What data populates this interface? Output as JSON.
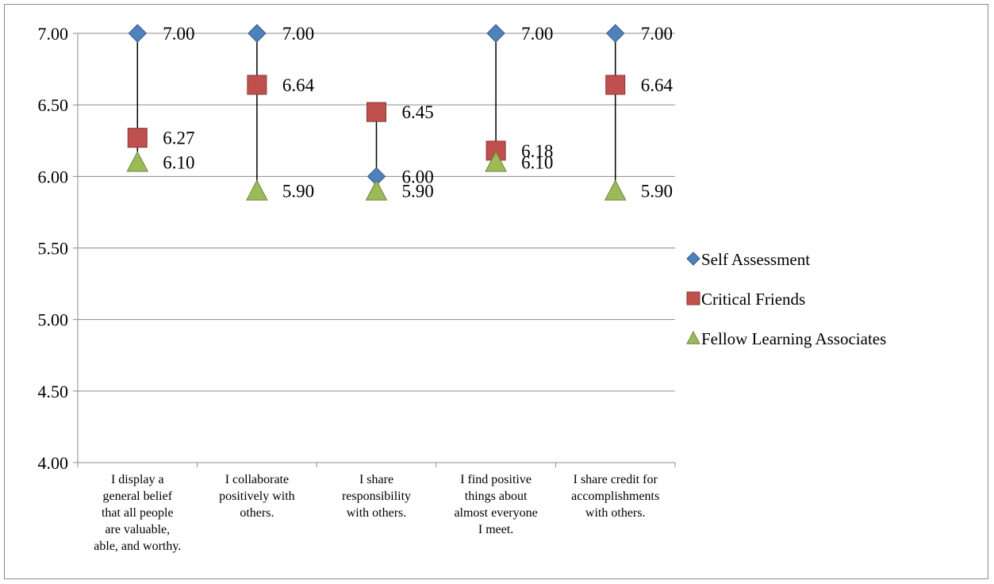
{
  "chart_data": {
    "type": "scatter",
    "categories": [
      [
        "I display a",
        "general belief",
        "that all people",
        "are valuable,",
        "able, and worthy."
      ],
      [
        "I collaborate",
        "positively with",
        "others."
      ],
      [
        "I share",
        "responsibility",
        "with others."
      ],
      [
        "I find positive",
        "things about",
        "almost everyone",
        "I meet."
      ],
      [
        "I share credit for",
        "accomplishments",
        "with others."
      ]
    ],
    "series": [
      {
        "name": "Self Assessment",
        "marker": "diamond",
        "color": "#4f81bd",
        "values": [
          7.0,
          7.0,
          6.0,
          7.0,
          7.0
        ]
      },
      {
        "name": "Critical Friends",
        "marker": "square",
        "color": "#c0504d",
        "values": [
          6.27,
          6.64,
          6.45,
          6.18,
          6.64
        ]
      },
      {
        "name": "Fellow Learning Associates",
        "marker": "triangle",
        "color": "#9bbb59",
        "values": [
          6.1,
          5.9,
          5.9,
          6.1,
          5.9
        ]
      }
    ],
    "data_labels": [
      [
        "7.00",
        "7.00",
        "6.00",
        "7.00",
        "7.00"
      ],
      [
        "6.27",
        "6.64",
        "6.45",
        "6.18",
        "6.64"
      ],
      [
        "6.10",
        "5.90",
        "5.90",
        "6.10",
        "5.90"
      ]
    ],
    "y_ticks": [
      "7.00",
      "6.50",
      "6.00",
      "5.50",
      "5.00",
      "4.50",
      "4.00"
    ],
    "ylim": [
      4.0,
      7.0
    ],
    "grid": true,
    "high_low_lines": true,
    "legend_position": "right"
  }
}
